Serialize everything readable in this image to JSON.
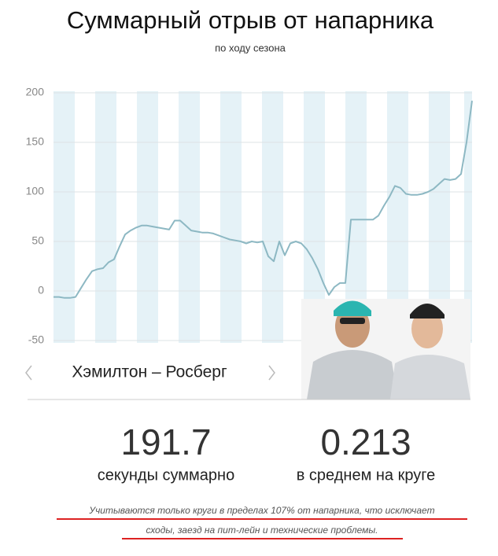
{
  "chart_data": {
    "type": "line",
    "title": "Суммарный отрыв от напарника",
    "subtitle": "по ходу сезона",
    "ylim": [
      -50,
      200
    ],
    "yticks": [
      -50,
      0,
      50,
      100,
      150,
      200
    ],
    "grid": true,
    "color": "#8db8c3",
    "series": [
      {
        "name": "Хэмилтон – Росберг",
        "color": "#8db8c3",
        "values": [
          -6,
          -6,
          -7,
          -7,
          -6,
          3,
          12,
          20,
          22,
          23,
          29,
          32,
          45,
          57,
          61,
          64,
          66,
          66,
          65,
          64,
          63,
          62,
          71,
          71,
          66,
          61,
          60,
          59,
          59,
          58,
          56,
          54,
          52,
          51,
          50,
          48,
          50,
          49,
          50,
          35,
          30,
          50,
          36,
          48,
          50,
          48,
          42,
          33,
          22,
          8,
          -4,
          4,
          8,
          8,
          72,
          72,
          72,
          72,
          72,
          76,
          86,
          95,
          106,
          104,
          98,
          97,
          97,
          98,
          100,
          103,
          108,
          113,
          112,
          113,
          118,
          150,
          192
        ]
      }
    ],
    "stats": [
      {
        "value": "191.7",
        "label": "секунды суммарно"
      },
      {
        "value": "0.213",
        "label": "в среднем на круге"
      }
    ],
    "footnote": [
      "Учитываются только круги в пределах 107% от напарника, что исключает",
      "сходы, заезд на пит-лейн и технические проблемы."
    ]
  }
}
